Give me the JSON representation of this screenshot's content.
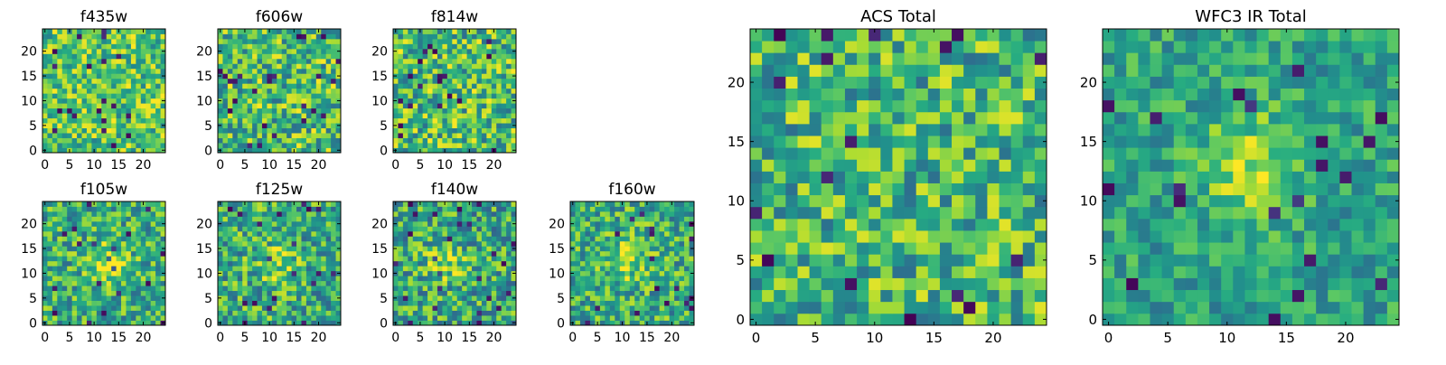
{
  "figure": {
    "description_type": "grid of pixel-intensity heatmaps (viridis colormap)"
  },
  "chart_data": [
    {
      "type": "heatmap",
      "title": "f435w",
      "grid_size": 25,
      "colormap": "viridis",
      "xticks": [
        "0",
        "5",
        "10",
        "15",
        "20"
      ],
      "yticks": [
        "0",
        "5",
        "10",
        "15",
        "20"
      ],
      "pattern": "uniform-noise",
      "seed": 11,
      "mean": 0.72,
      "spread": 0.28
    },
    {
      "type": "heatmap",
      "title": "f606w",
      "grid_size": 25,
      "colormap": "viridis",
      "xticks": [
        "0",
        "5",
        "10",
        "15",
        "20"
      ],
      "yticks": [
        "0",
        "5",
        "10",
        "15",
        "20"
      ],
      "pattern": "uniform-noise",
      "seed": 23,
      "mean": 0.68,
      "spread": 0.32
    },
    {
      "type": "heatmap",
      "title": "f814w",
      "grid_size": 25,
      "colormap": "viridis",
      "xticks": [
        "0",
        "5",
        "10",
        "15",
        "20"
      ],
      "yticks": [
        "0",
        "5",
        "10",
        "15",
        "20"
      ],
      "pattern": "uniform-noise",
      "seed": 37,
      "mean": 0.68,
      "spread": 0.32
    },
    {
      "type": "heatmap",
      "title": "f105w",
      "grid_size": 25,
      "colormap": "viridis",
      "xticks": [
        "0",
        "5",
        "10",
        "15",
        "20"
      ],
      "yticks": [
        "0",
        "5",
        "10",
        "15",
        "20"
      ],
      "pattern": "central-blob",
      "seed": 41,
      "mean": 0.62,
      "spread": 0.28,
      "blob": [
        13,
        12,
        0.25
      ]
    },
    {
      "type": "heatmap",
      "title": "f125w",
      "grid_size": 25,
      "colormap": "viridis",
      "xticks": [
        "0",
        "5",
        "10",
        "15",
        "20"
      ],
      "yticks": [
        "0",
        "5",
        "10",
        "15",
        "20"
      ],
      "pattern": "central-blob",
      "seed": 53,
      "mean": 0.62,
      "spread": 0.3,
      "blob": [
        12,
        12,
        0.2
      ]
    },
    {
      "type": "heatmap",
      "title": "f140w",
      "grid_size": 25,
      "colormap": "viridis",
      "xticks": [
        "0",
        "5",
        "10",
        "15",
        "20"
      ],
      "yticks": [
        "0",
        "5",
        "10",
        "15",
        "20"
      ],
      "pattern": "central-blob",
      "seed": 67,
      "mean": 0.6,
      "spread": 0.3,
      "blob": [
        10,
        12,
        0.22
      ]
    },
    {
      "type": "heatmap",
      "title": "f160w",
      "grid_size": 25,
      "colormap": "viridis",
      "xticks": [
        "0",
        "5",
        "10",
        "15",
        "20"
      ],
      "yticks": [
        "0",
        "5",
        "10",
        "15",
        "20"
      ],
      "pattern": "central-blob",
      "seed": 79,
      "mean": 0.62,
      "spread": 0.28,
      "blob": [
        11,
        13,
        0.25
      ]
    },
    {
      "type": "heatmap",
      "title": "ACS Total",
      "grid_size": 25,
      "colormap": "viridis",
      "xticks": [
        "0",
        "5",
        "10",
        "15",
        "20"
      ],
      "yticks": [
        "0",
        "5",
        "10",
        "15",
        "20"
      ],
      "pattern": "uniform-noise",
      "seed": 97,
      "mean": 0.66,
      "spread": 0.3
    },
    {
      "type": "heatmap",
      "title": "WFC3 IR Total",
      "grid_size": 25,
      "colormap": "viridis",
      "xticks": [
        "0",
        "5",
        "10",
        "15",
        "20"
      ],
      "yticks": [
        "0",
        "5",
        "10",
        "15",
        "20"
      ],
      "pattern": "central-blob",
      "seed": 131,
      "mean": 0.58,
      "spread": 0.2,
      "blob": [
        12,
        13,
        0.3
      ]
    }
  ]
}
